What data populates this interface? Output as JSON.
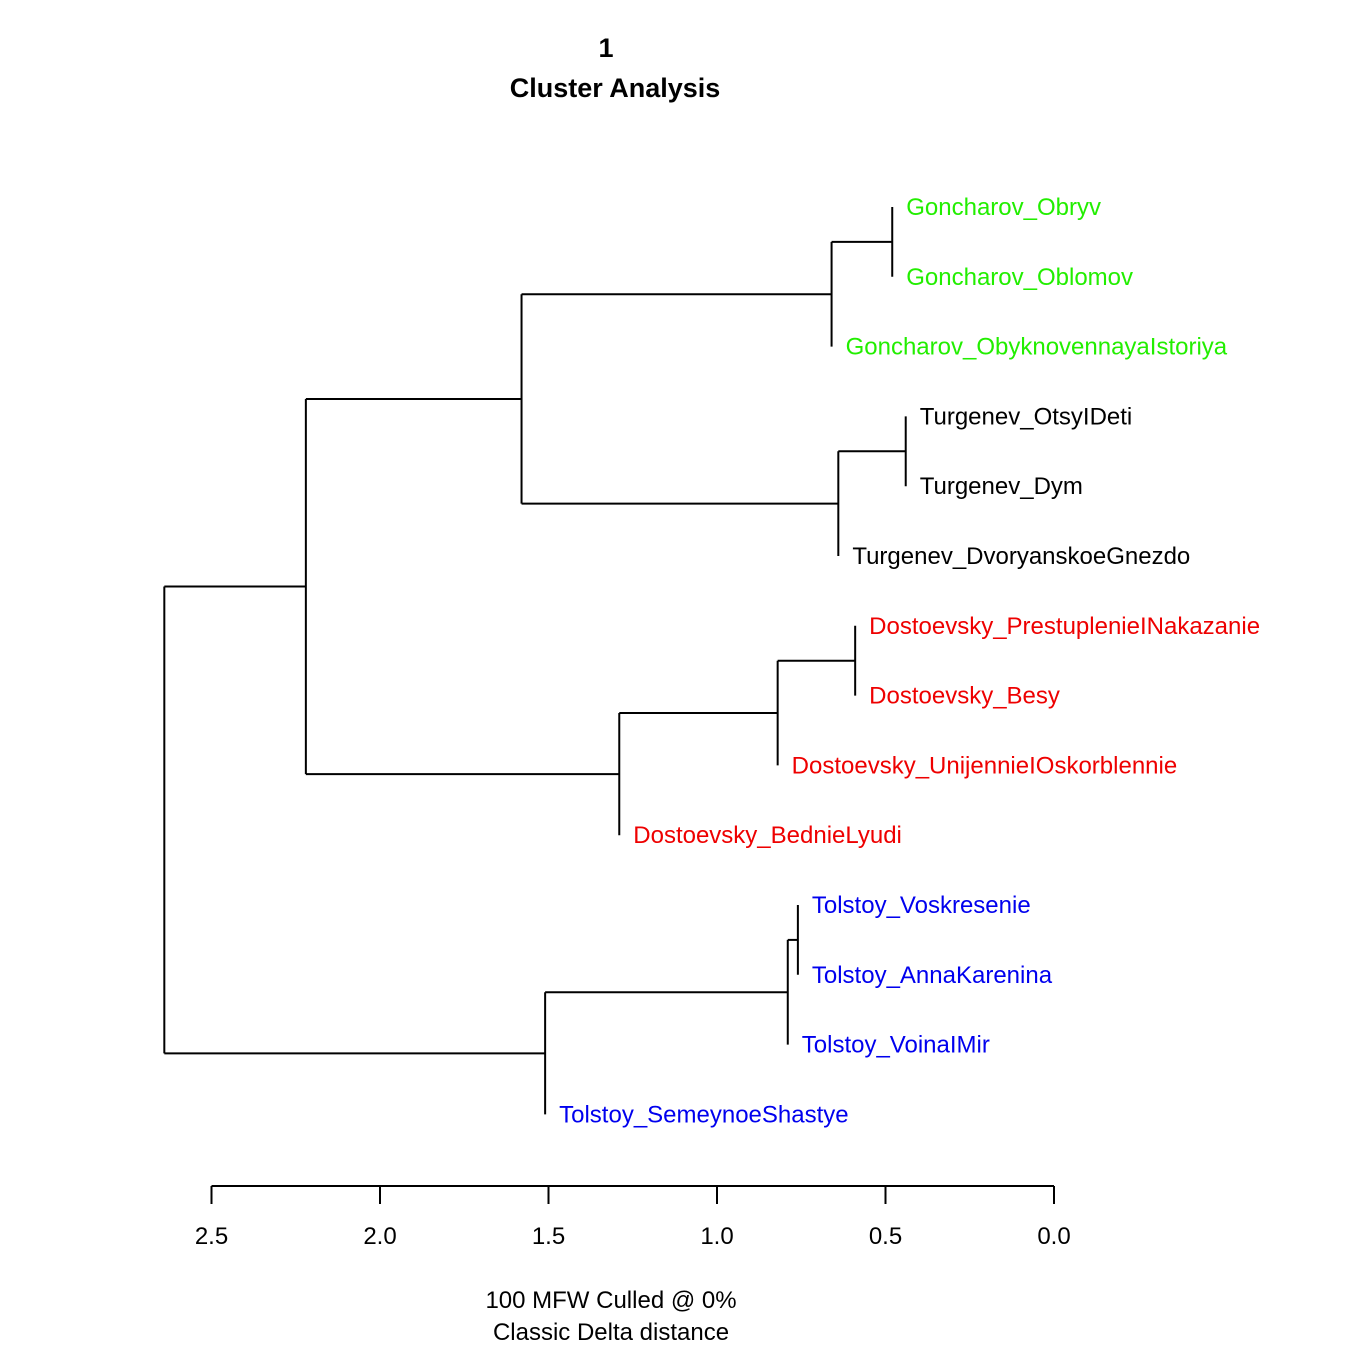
{
  "chart_data": {
    "type": "dendrogram",
    "title_line1": "1",
    "title_line2": "Cluster Analysis",
    "xlabel_line1": "100 MFW  Culled @ 0%",
    "xlabel_line2": "Classic Delta distance",
    "xlim": [
      2.5,
      0.0
    ],
    "ticks": [
      "2.5",
      "2.0",
      "1.5",
      "1.0",
      "0.5",
      "0.0"
    ],
    "tick_values": [
      2.5,
      2.0,
      1.5,
      1.0,
      0.5,
      0.0
    ],
    "colors": {
      "Goncharov": "#22ee00",
      "Turgenev": "#000000",
      "Dostoevsky": "#ee0000",
      "Tolstoy": "#0000ee"
    },
    "leaves": [
      {
        "label": "Goncharov_Obryv",
        "author": "Goncharov"
      },
      {
        "label": "Goncharov_Oblomov",
        "author": "Goncharov"
      },
      {
        "label": "Goncharov_ObyknovennayaIstoriya",
        "author": "Goncharov"
      },
      {
        "label": "Turgenev_OtsyIDeti",
        "author": "Turgenev"
      },
      {
        "label": "Turgenev_Dym",
        "author": "Turgenev"
      },
      {
        "label": "Turgenev_DvoryanskoeGnezdo",
        "author": "Turgenev"
      },
      {
        "label": "Dostoevsky_PrestuplenieINakazanie",
        "author": "Dostoevsky"
      },
      {
        "label": "Dostoevsky_Besy",
        "author": "Dostoevsky"
      },
      {
        "label": "Dostoevsky_UnijennieIOskorblennie",
        "author": "Dostoevsky"
      },
      {
        "label": "Dostoevsky_BednieLyudi",
        "author": "Dostoevsky"
      },
      {
        "label": "Tolstoy_Voskresenie",
        "author": "Tolstoy"
      },
      {
        "label": "Tolstoy_AnnaKarenina",
        "author": "Tolstoy"
      },
      {
        "label": "Tolstoy_VoinaIMir",
        "author": "Tolstoy"
      },
      {
        "label": "Tolstoy_SemeynoeShastye",
        "author": "Tolstoy"
      }
    ],
    "merges": [
      {
        "id": "g1",
        "children": [
          "L0",
          "L1"
        ],
        "height": 0.48
      },
      {
        "id": "g2",
        "children": [
          "g1",
          "L2"
        ],
        "height": 0.66
      },
      {
        "id": "t1",
        "children": [
          "L3",
          "L4"
        ],
        "height": 0.44
      },
      {
        "id": "t2",
        "children": [
          "t1",
          "L5"
        ],
        "height": 0.64
      },
      {
        "id": "gt",
        "children": [
          "g2",
          "t2"
        ],
        "height": 1.58
      },
      {
        "id": "d1",
        "children": [
          "L6",
          "L7"
        ],
        "height": 0.59
      },
      {
        "id": "d2",
        "children": [
          "d1",
          "L8"
        ],
        "height": 0.82
      },
      {
        "id": "d3",
        "children": [
          "d2",
          "L9"
        ],
        "height": 1.29
      },
      {
        "id": "gtd",
        "children": [
          "gt",
          "d3"
        ],
        "height": 2.22
      },
      {
        "id": "s1",
        "children": [
          "L10",
          "L11"
        ],
        "height": 0.76
      },
      {
        "id": "s2",
        "children": [
          "s1",
          "L12"
        ],
        "height": 0.79
      },
      {
        "id": "s3",
        "children": [
          "s2",
          "L13"
        ],
        "height": 1.51
      },
      {
        "id": "root",
        "children": [
          "gtd",
          "s3"
        ],
        "height": 2.64
      }
    ]
  }
}
